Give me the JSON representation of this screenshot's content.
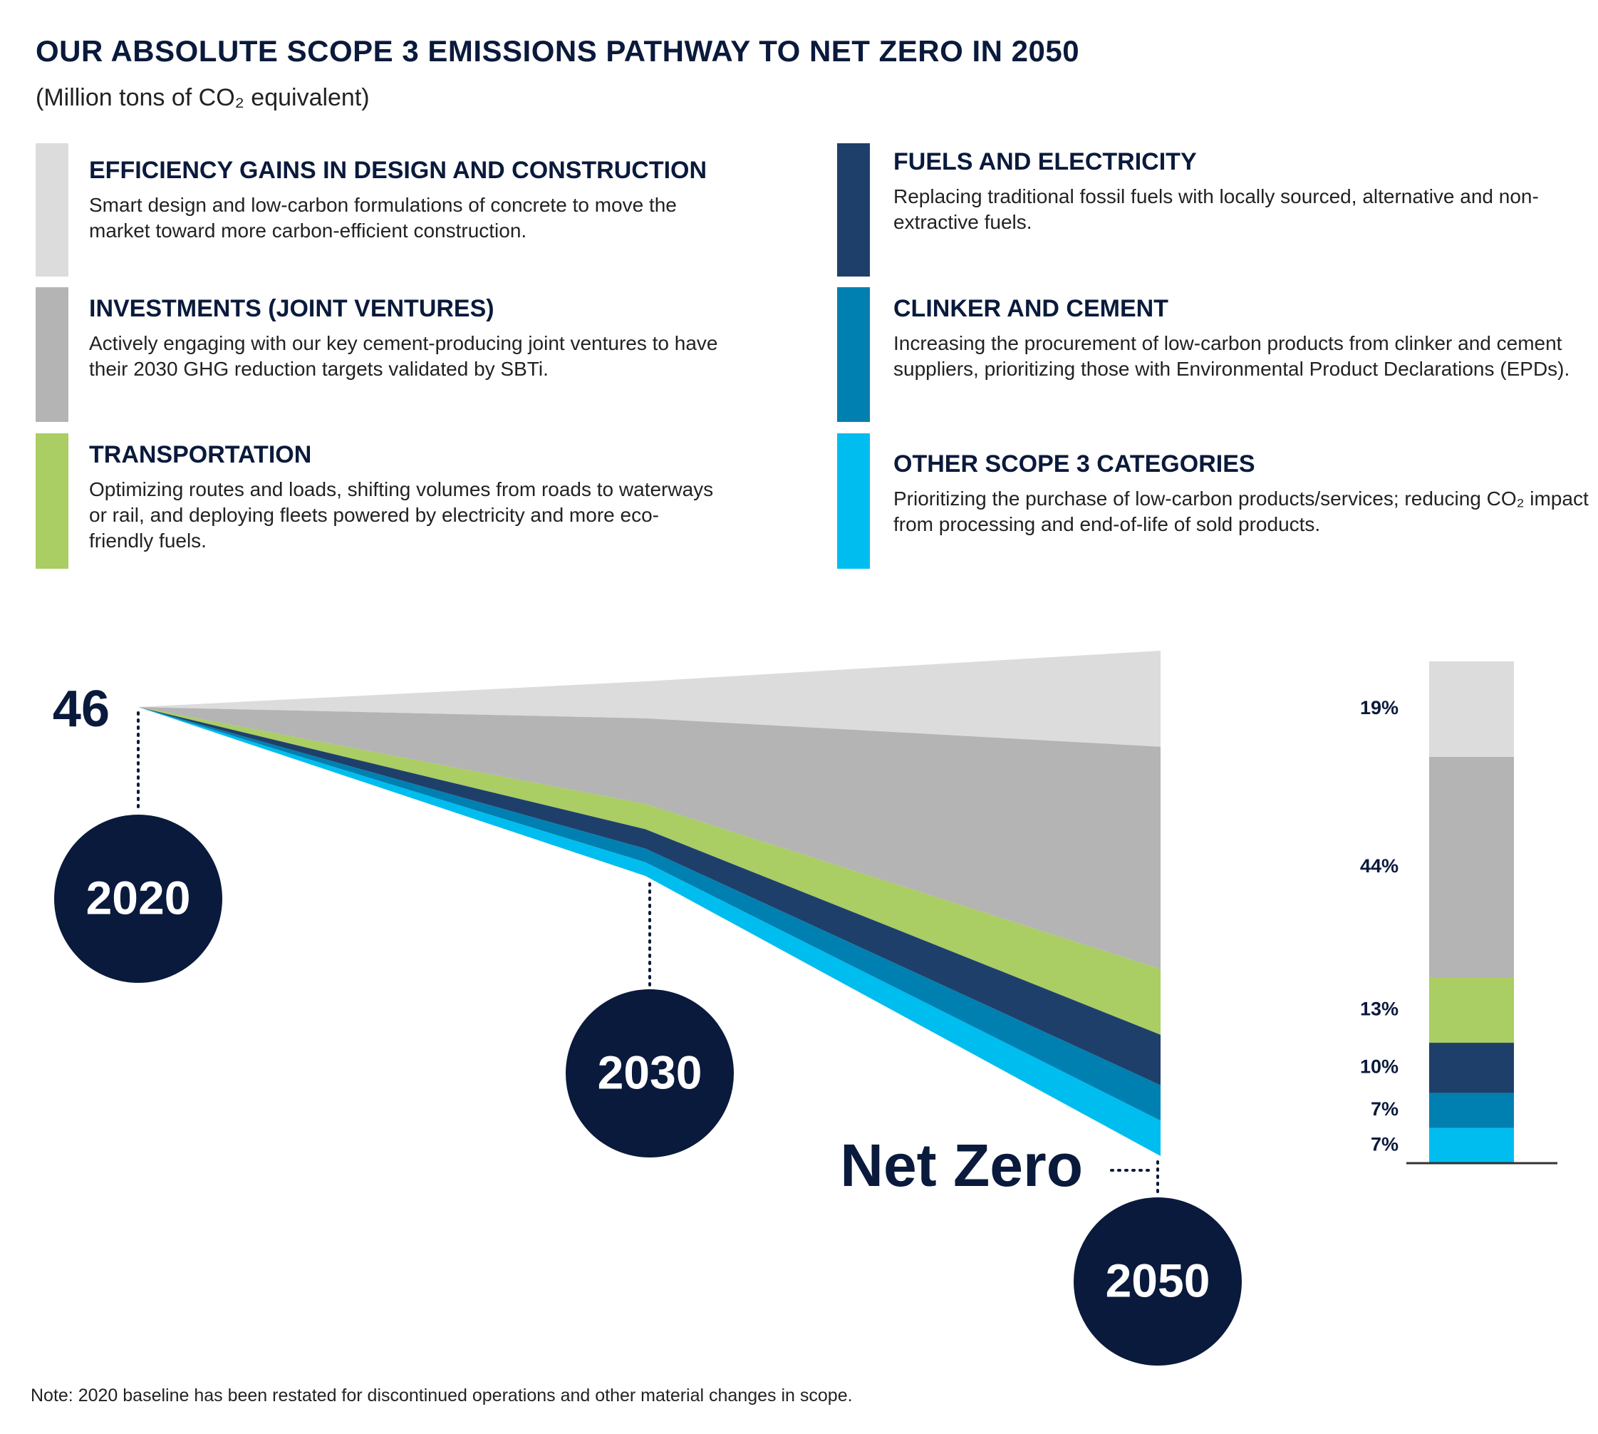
{
  "title": "OUR ABSOLUTE SCOPE 3 EMISSIONS PATHWAY TO NET ZERO IN 2050",
  "subtitle": "(Million tons of CO₂ equivalent)",
  "descriptions": [
    "Smart design and low-carbon formulations of concrete to move the market toward more carbon-efficient construction.",
    "Actively engaging with our key cement-producing joint ventures to have their 2030 GHG reduction targets validated by SBTi.",
    "Optimizing routes and loads, shifting volumes from roads to waterways or rail, and deploying fleets powered by electricity and more eco-friendly fuels.",
    "Replacing traditional fossil fuels with locally sourced, alternative and non-extractive fuels.",
    "Increasing the procurement of low-carbon products from clinker and cement suppliers, prioritizing those with Environmental Product Declarations (EPDs).",
    "Prioritizing the purchase of low-carbon products/services; reducing CO₂ impact from processing and end-of-life of sold products."
  ],
  "baseline": "46",
  "years": [
    "2020",
    "2030",
    "2050"
  ],
  "end_label": "Net Zero",
  "note": "Note: 2020 baseline has been restated for discontinued operations and other material changes in scope.",
  "chart_data": {
    "type": "bar",
    "categories": [
      null
    ],
    "ylim": [
      0,
      100
    ],
    "series": [
      {
        "name": "EFFICIENCY GAINS IN DESIGN AND CONSTRUCTION",
        "color": "#dcdcdc",
        "values": [
          19
        ],
        "value_labels": [
          "19%"
        ]
      },
      {
        "name": "INVESTMENTS (JOINT VENTURES)",
        "color": "#b4b4b4",
        "values": [
          44
        ],
        "value_labels": [
          "44%"
        ]
      },
      {
        "name": "TRANSPORTATION",
        "color": "#aacd64",
        "values": [
          13
        ],
        "value_labels": [
          "13%"
        ]
      },
      {
        "name": "FUELS AND ELECTRICITY",
        "color": "#1f3f6b",
        "values": [
          10
        ],
        "value_labels": [
          "10%"
        ]
      },
      {
        "name": "CLINKER AND CEMENT",
        "color": "#0080b0",
        "values": [
          7
        ],
        "value_labels": [
          "7%"
        ]
      },
      {
        "name": "OTHER SCOPE 3 CATEGORIES",
        "color": "#00bdf0",
        "values": [
          7
        ],
        "value_labels": [
          "7%"
        ]
      }
    ]
  }
}
